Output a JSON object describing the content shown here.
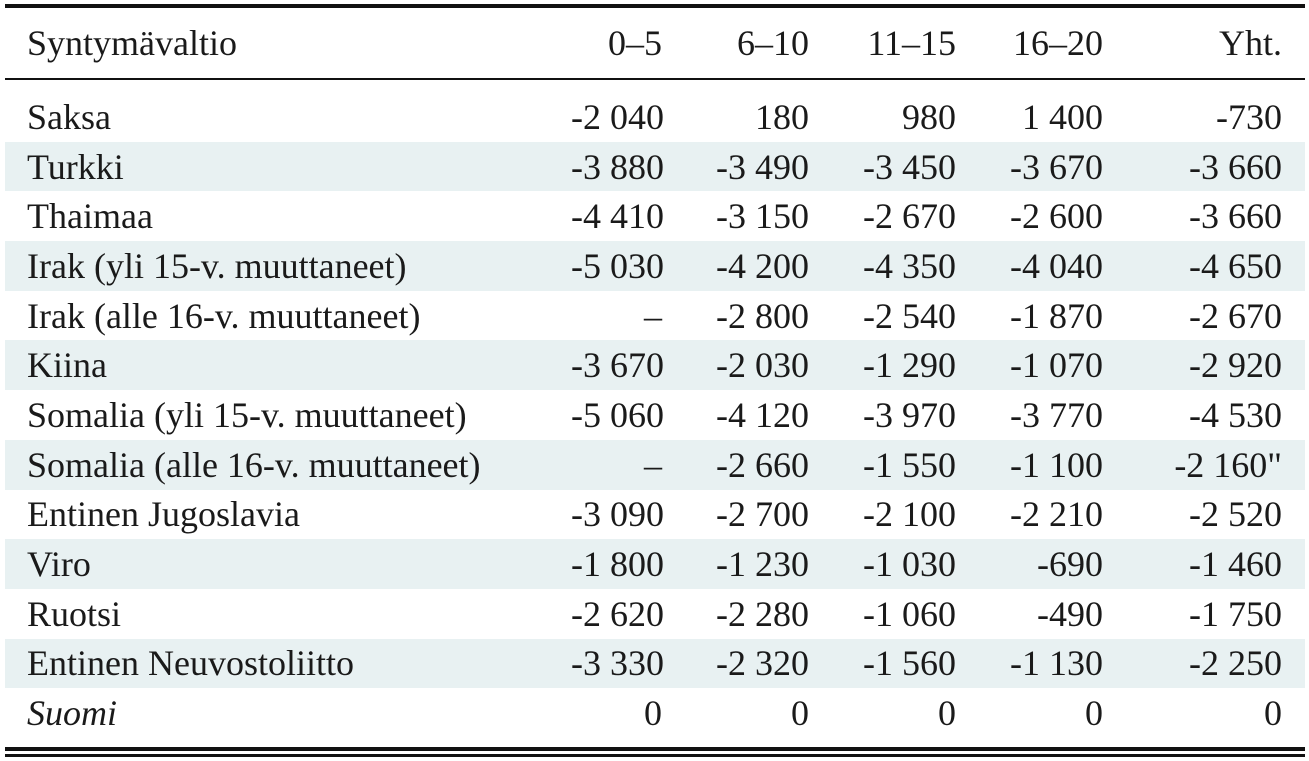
{
  "table": {
    "headers": [
      "Syntymävaltio",
      "0–5",
      "6–10",
      "11–15",
      "16–20",
      "Yht."
    ],
    "rows": [
      {
        "country": "Saksa",
        "values": [
          "-2 040",
          "180",
          "980",
          "1 400",
          "-730"
        ],
        "shaded": false,
        "italic": false
      },
      {
        "country": "Turkki",
        "values": [
          "-3 880",
          "-3 490",
          "-3 450",
          "-3 670",
          "-3 660"
        ],
        "shaded": true,
        "italic": false
      },
      {
        "country": "Thaimaa",
        "values": [
          "-4 410",
          "-3 150",
          "-2 670",
          "-2 600",
          "-3 660"
        ],
        "shaded": false,
        "italic": false
      },
      {
        "country": "Irak (yli 15-v. muuttaneet)",
        "values": [
          "-5 030",
          "-4 200",
          "-4 350",
          "-4 040",
          "-4 650"
        ],
        "shaded": true,
        "italic": false
      },
      {
        "country": "Irak (alle 16-v. muuttaneet)",
        "values": [
          "–",
          "-2 800",
          "-2 540",
          "-1 870",
          "-2 670"
        ],
        "shaded": false,
        "italic": false
      },
      {
        "country": "Kiina",
        "values": [
          "-3 670",
          "-2 030",
          "-1 290",
          "-1 070",
          "-2 920"
        ],
        "shaded": true,
        "italic": false
      },
      {
        "country": "Somalia (yli 15-v. muuttaneet)",
        "values": [
          "-5 060",
          "-4 120",
          "-3 970",
          "-3 770",
          "-4 530"
        ],
        "shaded": false,
        "italic": false
      },
      {
        "country": "Somalia (alle 16-v. muuttaneet)",
        "values": [
          "–",
          "-2 660",
          "-1 550",
          "-1 100",
          "-2 160\""
        ],
        "shaded": true,
        "italic": false
      },
      {
        "country": "Entinen Jugoslavia",
        "values": [
          "-3 090",
          "-2 700",
          "-2 100",
          "-2 210",
          "-2 520"
        ],
        "shaded": false,
        "italic": false
      },
      {
        "country": "Viro",
        "values": [
          "-1 800",
          "-1 230",
          "-1 030",
          "-690",
          "-1 460"
        ],
        "shaded": true,
        "italic": false
      },
      {
        "country": "Ruotsi",
        "values": [
          "-2 620",
          "-2 280",
          "-1 060",
          "-490",
          "-1 750"
        ],
        "shaded": false,
        "italic": false
      },
      {
        "country": "Entinen Neuvostoliitto",
        "values": [
          "-3 330",
          "-2 320",
          "-1 560",
          "-1 130",
          "-2 250"
        ],
        "shaded": true,
        "italic": false
      },
      {
        "country": "Suomi",
        "values": [
          "0",
          "0",
          "0",
          "0",
          "0"
        ],
        "shaded": false,
        "italic": true
      }
    ]
  },
  "colors": {
    "shade": "#e8f1f2",
    "rule": "#111111",
    "text": "#1a1a1a"
  }
}
